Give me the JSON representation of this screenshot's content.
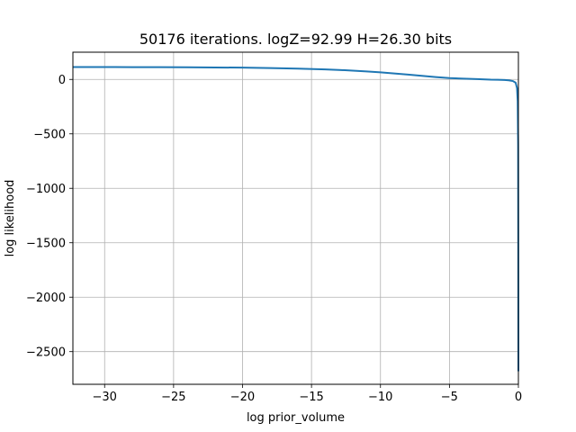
{
  "chart_data": {
    "type": "line",
    "title": "50176 iterations. logZ=92.99 H=26.30 bits",
    "xlabel": "log prior_volume",
    "ylabel": "log likelihood",
    "xlim": [
      -32.3,
      0
    ],
    "ylim": [
      -2800,
      250
    ],
    "xticks": [
      -30,
      -25,
      -20,
      -15,
      -10,
      -5,
      0
    ],
    "xtick_labels": [
      "−30",
      "−25",
      "−20",
      "−15",
      "−10",
      "−5",
      "0"
    ],
    "yticks": [
      0,
      -500,
      -1000,
      -1500,
      -2000,
      -2500
    ],
    "ytick_labels": [
      "0",
      "−500",
      "−1000",
      "−1500",
      "−2000",
      "−2500"
    ],
    "grid": true,
    "series": [
      {
        "color": "#1f77b4",
        "x": [
          -32.3,
          -30,
          -28,
          -26,
          -24,
          -22,
          -20,
          -18,
          -16,
          -14,
          -13,
          -12,
          -11,
          -10,
          -9,
          -8,
          -7,
          -6,
          -5,
          -4,
          -3,
          -2,
          -1.5,
          -1,
          -0.7,
          -0.4,
          -0.2,
          -0.1,
          -0.05,
          -0.02,
          -0.01,
          0
        ],
        "y": [
          114,
          114,
          113,
          113,
          112,
          110,
          108,
          104,
          99,
          92,
          87,
          81,
          73,
          65,
          55,
          44,
          33,
          22,
          12,
          7,
          3,
          -2,
          -3,
          -5,
          -8,
          -15,
          -30,
          -80,
          -200,
          -600,
          -1500,
          -2680
        ]
      }
    ]
  }
}
